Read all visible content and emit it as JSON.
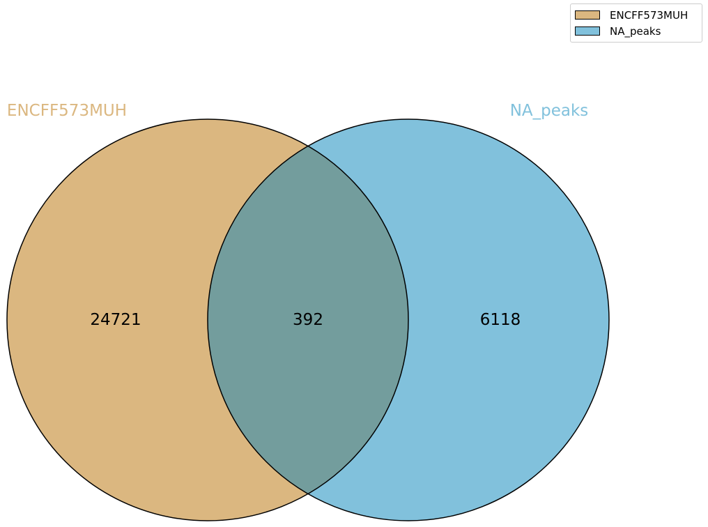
{
  "sets": [
    {
      "name": "ENCFF573MUH",
      "color": "#dbb780"
    },
    {
      "name": "NA_peaks",
      "color": "#81c1dc"
    }
  ],
  "overlap_color": "#739d9d",
  "regions": {
    "only_a": "24721",
    "both": "392",
    "only_b": "6118"
  },
  "legend": {
    "position": "top-right",
    "items": [
      {
        "label": "ENCFF573MUH",
        "color": "#dbb780"
      },
      {
        "label": "NA_peaks",
        "color": "#81c1dc"
      }
    ]
  }
}
